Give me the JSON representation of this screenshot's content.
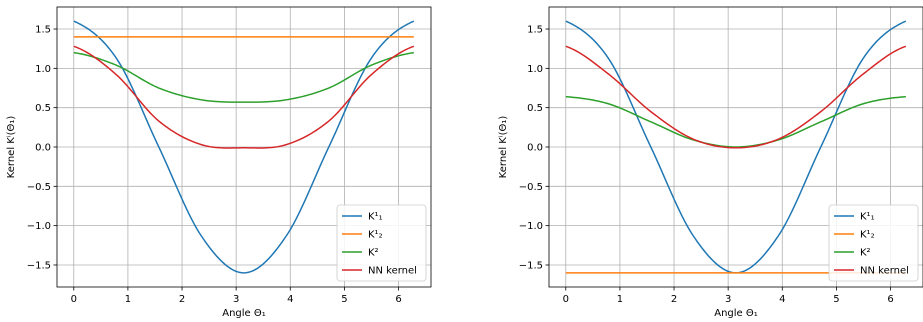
{
  "colors": {
    "K1_1": "#1f77b4",
    "K1_2": "#ff7f0e",
    "K2": "#2ca02c",
    "NN": "#d62728"
  },
  "chart_data": [
    {
      "type": "line",
      "xlabel": "Angle Θ₁",
      "ylabel": "Kernel Kⁱ(Θ₁)",
      "xlim": [
        -0.31,
        6.6
      ],
      "ylim": [
        -1.78,
        1.78
      ],
      "xticks": [
        0,
        1,
        2,
        3,
        4,
        5,
        6
      ],
      "yticks": [
        -1.5,
        -1.0,
        -0.5,
        0.0,
        0.5,
        1.0,
        1.5
      ],
      "xtick_labels": [
        "0",
        "1",
        "2",
        "3",
        "4",
        "5",
        "6"
      ],
      "ytick_labels": [
        "−1.5",
        "−1.0",
        "−0.5",
        "0.0",
        "0.5",
        "1.0",
        "1.5"
      ],
      "grid": true,
      "legend_position": "bottom-right",
      "x": [
        0,
        0.785,
        1.571,
        2.356,
        3.142,
        3.927,
        4.712,
        5.498,
        6.283
      ],
      "series": [
        {
          "name": "K¹₁",
          "color": "#1f77b4",
          "values": [
            1.6,
            1.13,
            0.0,
            -1.13,
            -1.6,
            -1.13,
            0.0,
            1.13,
            1.6
          ]
        },
        {
          "name": "K¹₂",
          "color": "#ff7f0e",
          "values": [
            1.4,
            1.4,
            1.4,
            1.4,
            1.4,
            1.4,
            1.4,
            1.4,
            1.4
          ]
        },
        {
          "name": "K²",
          "color": "#2ca02c",
          "values": [
            1.2,
            1.04,
            0.75,
            0.6,
            0.57,
            0.6,
            0.75,
            1.04,
            1.2
          ]
        },
        {
          "name": "NN kernel",
          "color": "#d62728",
          "values": [
            1.28,
            0.92,
            0.33,
            0.03,
            -0.01,
            0.03,
            0.33,
            0.92,
            1.28
          ]
        }
      ]
    },
    {
      "type": "line",
      "xlabel": "Angle Θ₁",
      "ylabel": "Kernel Kⁱ(Θ₁)",
      "xlim": [
        -0.31,
        6.6
      ],
      "ylim": [
        -1.78,
        1.78
      ],
      "xticks": [
        0,
        1,
        2,
        3,
        4,
        5,
        6
      ],
      "yticks": [
        -1.5,
        -1.0,
        -0.5,
        0.0,
        0.5,
        1.0,
        1.5
      ],
      "xtick_labels": [
        "0",
        "1",
        "2",
        "3",
        "4",
        "5",
        "6"
      ],
      "ytick_labels": [
        "−1.5",
        "−1.0",
        "−0.5",
        "0.0",
        "0.5",
        "1.0",
        "1.5"
      ],
      "grid": true,
      "legend_position": "bottom-right",
      "x": [
        0,
        0.785,
        1.571,
        2.356,
        3.142,
        3.927,
        4.712,
        5.498,
        6.283
      ],
      "series": [
        {
          "name": "K¹₁",
          "color": "#1f77b4",
          "values": [
            1.6,
            1.13,
            0.0,
            -1.13,
            -1.6,
            -1.13,
            0.0,
            1.13,
            1.6
          ]
        },
        {
          "name": "K¹₂",
          "color": "#ff7f0e",
          "values": [
            -1.6,
            -1.6,
            -1.6,
            -1.6,
            -1.6,
            -1.6,
            -1.6,
            -1.6,
            -1.6
          ]
        },
        {
          "name": "K²",
          "color": "#2ca02c",
          "values": [
            0.64,
            0.55,
            0.32,
            0.09,
            0.0,
            0.09,
            0.32,
            0.55,
            0.64
          ]
        },
        {
          "name": "NN kernel",
          "color": "#d62728",
          "values": [
            1.28,
            0.93,
            0.45,
            0.1,
            -0.01,
            0.1,
            0.45,
            0.93,
            1.28
          ]
        }
      ]
    }
  ]
}
